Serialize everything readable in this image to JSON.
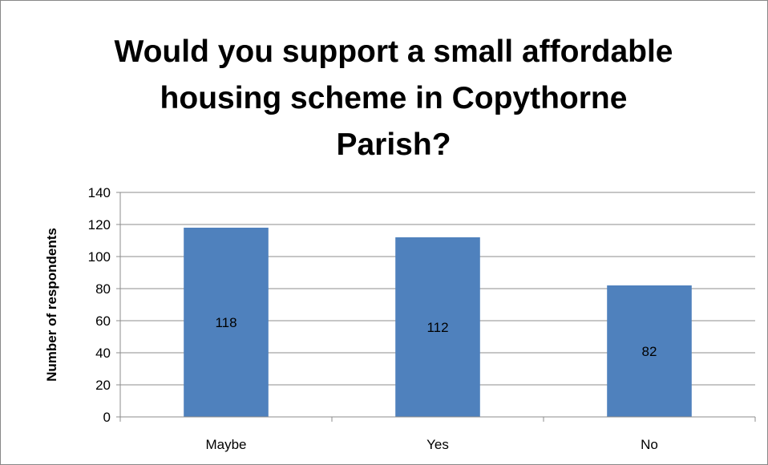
{
  "chart_data": {
    "type": "bar",
    "title_lines": [
      "Would you support a small affordable",
      "housing scheme in Copythorne",
      "Parish?"
    ],
    "categories": [
      "Maybe",
      "Yes",
      "No"
    ],
    "values": [
      118,
      112,
      82
    ],
    "data_labels": [
      "118",
      "112",
      "82"
    ],
    "xlabel": "",
    "ylabel": "Number of respondents",
    "ylim": [
      0,
      140
    ],
    "yticks": [
      0,
      20,
      40,
      60,
      80,
      100,
      120,
      140
    ],
    "grid": true,
    "legend": "none",
    "bar_color": "#4F81BD"
  }
}
